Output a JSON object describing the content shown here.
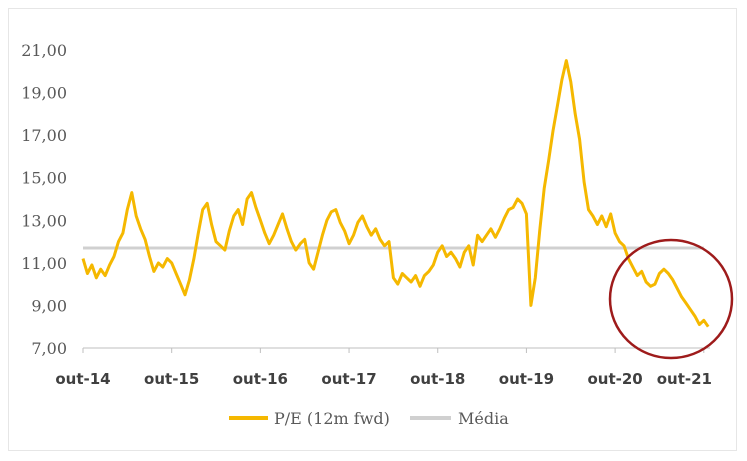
{
  "chart_data": {
    "type": "line",
    "title": "",
    "xlabel": "",
    "ylabel": "",
    "ylim": [
      7,
      21
    ],
    "y_ticks": [
      "21,00",
      "19,00",
      "17,00",
      "15,00",
      "13,00",
      "11,00",
      "9,00",
      "7,00"
    ],
    "y_tick_values": [
      21,
      19,
      17,
      15,
      13,
      11,
      9,
      7
    ],
    "x_ticks": [
      "out-14",
      "out-15",
      "out-16",
      "out-17",
      "out-18",
      "out-19",
      "out-20",
      "out-21"
    ],
    "x_tick_values": [
      2014.75,
      2015.75,
      2016.75,
      2017.75,
      2018.75,
      2019.75,
      2020.75,
      2021.75
    ],
    "xlim": [
      2014.75,
      2021.82
    ],
    "grid": false,
    "legend_position": "bottom",
    "series": [
      {
        "name": "P/E (12m fwd)",
        "color": "#f5b800",
        "x": [
          2014.75,
          2014.8,
          2014.85,
          2014.9,
          2014.95,
          2015.0,
          2015.05,
          2015.1,
          2015.15,
          2015.2,
          2015.25,
          2015.3,
          2015.35,
          2015.4,
          2015.45,
          2015.5,
          2015.55,
          2015.6,
          2015.65,
          2015.7,
          2015.75,
          2015.8,
          2015.85,
          2015.9,
          2015.95,
          2016.0,
          2016.05,
          2016.1,
          2016.15,
          2016.2,
          2016.25,
          2016.3,
          2016.35,
          2016.4,
          2016.45,
          2016.5,
          2016.55,
          2016.6,
          2016.65,
          2016.7,
          2016.75,
          2016.8,
          2016.85,
          2016.9,
          2016.95,
          2017.0,
          2017.05,
          2017.1,
          2017.15,
          2017.2,
          2017.25,
          2017.3,
          2017.35,
          2017.4,
          2017.45,
          2017.5,
          2017.55,
          2017.6,
          2017.65,
          2017.7,
          2017.75,
          2017.8,
          2017.85,
          2017.9,
          2017.95,
          2018.0,
          2018.05,
          2018.1,
          2018.15,
          2018.2,
          2018.25,
          2018.3,
          2018.35,
          2018.4,
          2018.45,
          2018.5,
          2018.55,
          2018.6,
          2018.65,
          2018.7,
          2018.75,
          2018.8,
          2018.85,
          2018.9,
          2018.95,
          2019.0,
          2019.05,
          2019.1,
          2019.15,
          2019.2,
          2019.25,
          2019.3,
          2019.35,
          2019.4,
          2019.45,
          2019.5,
          2019.55,
          2019.6,
          2019.65,
          2019.7,
          2019.75,
          2019.8,
          2019.85,
          2019.9,
          2019.95,
          2020.0,
          2020.05,
          2020.1,
          2020.15,
          2020.2,
          2020.25,
          2020.3,
          2020.35,
          2020.4,
          2020.45,
          2020.5,
          2020.55,
          2020.6,
          2020.65,
          2020.7,
          2020.75,
          2020.8,
          2020.85,
          2020.9,
          2020.95,
          2021.0,
          2021.05,
          2021.1,
          2021.15,
          2021.2,
          2021.25,
          2021.3,
          2021.35,
          2021.4,
          2021.45,
          2021.5,
          2021.55,
          2021.6,
          2021.65,
          2021.7,
          2021.75,
          2021.8
        ],
        "y": [
          11.2,
          10.5,
          10.9,
          10.3,
          10.7,
          10.4,
          10.9,
          11.3,
          12.0,
          12.4,
          13.5,
          14.3,
          13.2,
          12.6,
          12.1,
          11.3,
          10.6,
          11.0,
          10.8,
          11.2,
          11.0,
          10.5,
          10.0,
          9.5,
          10.2,
          11.2,
          12.4,
          13.5,
          13.8,
          12.8,
          12.0,
          11.8,
          11.6,
          12.5,
          13.2,
          13.5,
          12.8,
          14.0,
          14.3,
          13.6,
          13.0,
          12.4,
          11.9,
          12.3,
          12.8,
          13.3,
          12.6,
          12.0,
          11.6,
          11.9,
          12.1,
          11.0,
          10.7,
          11.5,
          12.3,
          13.0,
          13.4,
          13.5,
          12.9,
          12.5,
          11.9,
          12.3,
          12.9,
          13.2,
          12.7,
          12.3,
          12.6,
          12.1,
          11.8,
          12.0,
          10.3,
          10.0,
          10.5,
          10.3,
          10.1,
          10.4,
          9.9,
          10.4,
          10.6,
          10.9,
          11.5,
          11.8,
          11.3,
          11.5,
          11.2,
          10.8,
          11.5,
          11.8,
          10.9,
          12.3,
          12.0,
          12.3,
          12.6,
          12.2,
          12.6,
          13.1,
          13.5,
          13.6,
          14.0,
          13.8,
          13.3,
          9.0,
          10.3,
          12.5,
          14.5,
          15.8,
          17.2,
          18.4,
          19.6,
          20.5,
          19.5,
          18.0,
          16.8,
          14.8,
          13.5,
          13.2,
          12.8,
          13.2,
          12.7,
          13.3,
          12.4,
          12.0,
          11.8,
          11.2,
          10.8,
          10.4,
          10.6,
          10.1,
          9.9,
          10.0,
          10.5,
          10.7,
          10.5,
          10.2,
          9.8,
          9.4,
          9.1,
          8.8,
          8.5,
          8.1,
          8.3,
          8.0
        ]
      },
      {
        "name": "Média",
        "color": "#d0d0d0",
        "x": [
          2014.75,
          2021.75
        ],
        "y": [
          11.7,
          11.7
        ]
      }
    ]
  },
  "annotation": {
    "shape": "circle",
    "color": "#9e1b1b"
  }
}
